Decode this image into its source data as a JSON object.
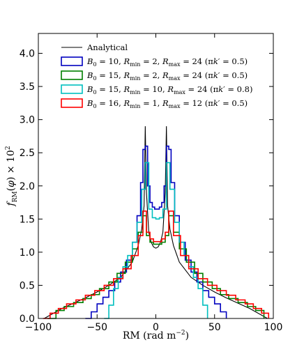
{
  "chart_data": {
    "type": "line",
    "title": "",
    "xlabel": "RM (rad m⁻²)",
    "ylabel": "f_RM(φ) × 10²",
    "xlim": [
      -100,
      100
    ],
    "ylim": [
      0,
      4.3
    ],
    "xticks": [
      -100,
      -50,
      0,
      50,
      100
    ],
    "xtick_labels": [
      "−100",
      "−50",
      "0",
      "50",
      "100"
    ],
    "yticks": [
      0.0,
      0.5,
      1.0,
      1.5,
      2.0,
      2.5,
      3.0,
      3.5,
      4.0
    ],
    "ytick_labels": [
      "0.0",
      "0.5",
      "1.0",
      "1.5",
      "2.0",
      "2.5",
      "3.0",
      "3.5",
      "4.0"
    ],
    "grid": false,
    "legend_position": "top-left",
    "series": [
      {
        "name": "Analytical",
        "legend_html": "Analytical",
        "color": "#000000",
        "style": "line",
        "x": [
          -95,
          -90,
          -80,
          -70,
          -60,
          -50,
          -40,
          -30,
          -20,
          -15,
          -12,
          -10,
          -9,
          -8,
          -6,
          -4,
          -2,
          0,
          2,
          4,
          6,
          8,
          9,
          10,
          12,
          15,
          20,
          30,
          40,
          50,
          60,
          70,
          80,
          90,
          95
        ],
        "y": [
          0.0,
          0.05,
          0.15,
          0.23,
          0.31,
          0.4,
          0.5,
          0.62,
          0.85,
          1.1,
          1.35,
          1.7,
          2.9,
          1.9,
          1.3,
          1.15,
          1.08,
          1.06,
          1.08,
          1.15,
          1.3,
          1.9,
          2.9,
          1.7,
          1.35,
          1.1,
          0.85,
          0.62,
          0.5,
          0.4,
          0.31,
          0.23,
          0.15,
          0.05,
          0.0
        ]
      },
      {
        "name": "B0=10, Rmin=2, Rmax=24 (πk'=0.5)",
        "legend_html": "<tspan font-style='italic'>B</tspan><tspan font-size='8' dy='3'>0</tspan><tspan dy='-3'> = 10, </tspan><tspan font-style='italic'>R</tspan><tspan font-size='8' dy='3'>min</tspan><tspan dy='-3'> = 2, </tspan><tspan font-style='italic'>R</tspan><tspan font-size='8' dy='3'>max</tspan><tspan dy='-3'> = 24 (π</tspan><tspan font-style='italic'>k</tspan><tspan>′ = 0.5)</tspan>",
        "color": "#0000bf",
        "style": "step",
        "x": [
          -60,
          -55,
          -50,
          -45,
          -40,
          -35,
          -30,
          -25,
          -20,
          -16,
          -13,
          -11,
          -9,
          -7,
          -5,
          -3,
          -1,
          1,
          3,
          5,
          7,
          9,
          11,
          13,
          16,
          20,
          25,
          30,
          35,
          40,
          45,
          50,
          55,
          60
        ],
        "y": [
          0.0,
          0.1,
          0.22,
          0.32,
          0.42,
          0.55,
          0.7,
          0.88,
          1.15,
          1.55,
          2.05,
          2.55,
          2.6,
          2.0,
          1.75,
          1.68,
          1.65,
          1.65,
          1.68,
          1.75,
          2.0,
          2.6,
          2.55,
          2.05,
          1.55,
          1.15,
          0.88,
          0.7,
          0.55,
          0.42,
          0.32,
          0.22,
          0.1,
          0.0
        ]
      },
      {
        "name": "B0=15, Rmin=2, Rmax=24 (πk'=0.5)",
        "legend_html": "<tspan font-style='italic'>B</tspan><tspan font-size='8' dy='3'>0</tspan><tspan dy='-3'> = 15, </tspan><tspan font-style='italic'>R</tspan><tspan font-size='8' dy='3'>min</tspan><tspan dy='-3'> = 2, </tspan><tspan font-style='italic'>R</tspan><tspan font-size='8' dy='3'>max</tspan><tspan dy='-3'> = 24 (π</tspan><tspan font-style='italic'>k</tspan><tspan>′ = 0.5)</tspan>",
        "color": "#007f00",
        "style": "step",
        "x": [
          -92,
          -85,
          -78,
          -70,
          -62,
          -55,
          -48,
          -40,
          -33,
          -26,
          -20,
          -15,
          -11,
          -8,
          -5,
          -2,
          2,
          5,
          8,
          11,
          15,
          20,
          26,
          33,
          40,
          48,
          55,
          62,
          70,
          78,
          85,
          92
        ],
        "y": [
          0.0,
          0.12,
          0.18,
          0.24,
          0.3,
          0.36,
          0.45,
          0.55,
          0.68,
          0.85,
          1.05,
          1.3,
          1.55,
          1.25,
          1.15,
          1.12,
          1.12,
          1.15,
          1.25,
          1.55,
          1.3,
          1.05,
          0.85,
          0.68,
          0.55,
          0.45,
          0.36,
          0.3,
          0.24,
          0.18,
          0.12,
          0.0
        ]
      },
      {
        "name": "B0=15, Rmin=10, Rmax=24 (πk'=0.8)",
        "legend_html": "<tspan font-style='italic'>B</tspan><tspan font-size='8' dy='3'>0</tspan><tspan dy='-3'> = 15, </tspan><tspan font-style='italic'>R</tspan><tspan font-size='8' dy='3'>min</tspan><tspan dy='-3'> = 10, </tspan><tspan font-style='italic'>R</tspan><tspan font-size='8' dy='3'>max</tspan><tspan dy='-3'> = 24 (π</tspan><tspan font-style='italic'>k</tspan><tspan>′ = 0.8)</tspan>",
        "color": "#00bfbf",
        "style": "step",
        "x": [
          -44,
          -40,
          -36,
          -32,
          -28,
          -24,
          -20,
          -16,
          -12,
          -9,
          -6,
          -3,
          0,
          3,
          6,
          9,
          12,
          16,
          20,
          24,
          28,
          32,
          36,
          40,
          44
        ],
        "y": [
          0.0,
          0.2,
          0.45,
          0.62,
          0.78,
          0.95,
          1.15,
          1.45,
          1.95,
          2.35,
          1.65,
          1.52,
          1.5,
          1.52,
          1.65,
          2.35,
          1.95,
          1.45,
          1.15,
          0.95,
          0.78,
          0.62,
          0.45,
          0.2,
          0.0
        ]
      },
      {
        "name": "B0=16, Rmin=1, Rmax=12 (πk'=0.5)",
        "legend_html": "<tspan font-style='italic'>B</tspan><tspan font-size='8' dy='3'>0</tspan><tspan dy='-3'> = 16, </tspan><tspan font-style='italic'>R</tspan><tspan font-size='8' dy='3'>min</tspan><tspan dy='-3'> = 1, </tspan><tspan font-style='italic'>R</tspan><tspan font-size='8' dy='3'>max</tspan><tspan dy='-3'> = 12 (π</tspan><tspan font-style='italic'>k</tspan><tspan>′ = 0.5)</tspan>",
        "color": "#ff0000",
        "style": "step",
        "x": [
          -96,
          -90,
          -83,
          -76,
          -68,
          -60,
          -52,
          -44,
          -36,
          -28,
          -21,
          -15,
          -11,
          -8,
          -5,
          -2,
          2,
          5,
          8,
          11,
          15,
          21,
          28,
          36,
          44,
          52,
          60,
          68,
          76,
          83,
          90,
          96
        ],
        "y": [
          0.0,
          0.08,
          0.15,
          0.22,
          0.28,
          0.35,
          0.42,
          0.5,
          0.6,
          0.75,
          0.95,
          1.25,
          1.62,
          1.3,
          1.2,
          1.16,
          1.16,
          1.2,
          1.3,
          1.62,
          1.25,
          0.95,
          0.75,
          0.6,
          0.5,
          0.42,
          0.35,
          0.28,
          0.22,
          0.15,
          0.08,
          0.0
        ]
      }
    ]
  }
}
